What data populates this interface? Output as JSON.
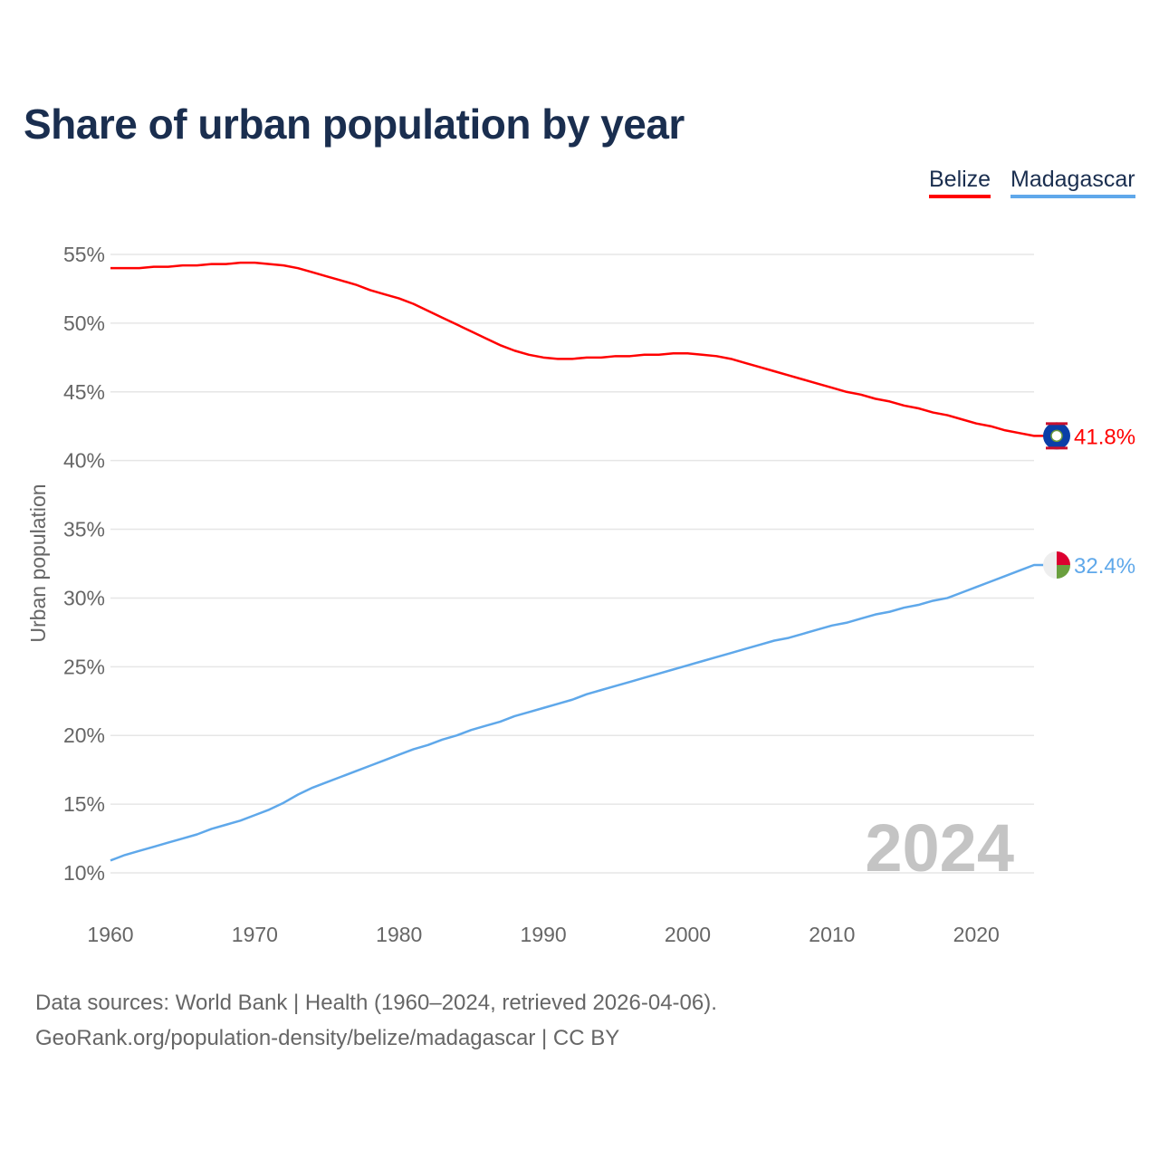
{
  "chart_data": {
    "type": "line",
    "title": "Share of urban population by year",
    "ylabel": "Urban population",
    "xlabel": "",
    "xlim": [
      1960,
      2024
    ],
    "ylim": [
      10,
      55
    ],
    "yticks": [
      10,
      15,
      20,
      25,
      30,
      35,
      40,
      45,
      50,
      55
    ],
    "ytick_labels": [
      "10%",
      "15%",
      "20%",
      "25%",
      "30%",
      "35%",
      "40%",
      "45%",
      "50%",
      "55%"
    ],
    "xticks": [
      1960,
      1970,
      1980,
      1990,
      2000,
      2010,
      2020
    ],
    "xtick_labels": [
      "1960",
      "1970",
      "1980",
      "1990",
      "2000",
      "2010",
      "2020"
    ],
    "grid": true,
    "legend_position": "top-right",
    "watermark_year": "2024",
    "x": [
      1960,
      1961,
      1962,
      1963,
      1964,
      1965,
      1966,
      1967,
      1968,
      1969,
      1970,
      1971,
      1972,
      1973,
      1974,
      1975,
      1976,
      1977,
      1978,
      1979,
      1980,
      1981,
      1982,
      1983,
      1984,
      1985,
      1986,
      1987,
      1988,
      1989,
      1990,
      1991,
      1992,
      1993,
      1994,
      1995,
      1996,
      1997,
      1998,
      1999,
      2000,
      2001,
      2002,
      2003,
      2004,
      2005,
      2006,
      2007,
      2008,
      2009,
      2010,
      2011,
      2012,
      2013,
      2014,
      2015,
      2016,
      2017,
      2018,
      2019,
      2020,
      2021,
      2022,
      2023,
      2024
    ],
    "series": [
      {
        "name": "Belize",
        "color": "#ff0000",
        "end_label": "41.8%",
        "values": [
          54.0,
          54.0,
          54.0,
          54.1,
          54.1,
          54.2,
          54.2,
          54.3,
          54.3,
          54.4,
          54.4,
          54.3,
          54.2,
          54.0,
          53.7,
          53.4,
          53.1,
          52.8,
          52.4,
          52.1,
          51.8,
          51.4,
          50.9,
          50.4,
          49.9,
          49.4,
          48.9,
          48.4,
          48.0,
          47.7,
          47.5,
          47.4,
          47.4,
          47.5,
          47.5,
          47.6,
          47.6,
          47.7,
          47.7,
          47.8,
          47.8,
          47.7,
          47.6,
          47.4,
          47.1,
          46.8,
          46.5,
          46.2,
          45.9,
          45.6,
          45.3,
          45.0,
          44.8,
          44.5,
          44.3,
          44.0,
          43.8,
          43.5,
          43.3,
          43.0,
          42.7,
          42.5,
          42.2,
          42.0,
          41.8
        ]
      },
      {
        "name": "Madagascar",
        "color": "#5fa8ea",
        "end_label": "32.4%",
        "values": [
          10.9,
          11.3,
          11.6,
          11.9,
          12.2,
          12.5,
          12.8,
          13.2,
          13.5,
          13.8,
          14.2,
          14.6,
          15.1,
          15.7,
          16.2,
          16.6,
          17.0,
          17.4,
          17.8,
          18.2,
          18.6,
          19.0,
          19.3,
          19.7,
          20.0,
          20.4,
          20.7,
          21.0,
          21.4,
          21.7,
          22.0,
          22.3,
          22.6,
          23.0,
          23.3,
          23.6,
          23.9,
          24.2,
          24.5,
          24.8,
          25.1,
          25.4,
          25.7,
          26.0,
          26.3,
          26.6,
          26.9,
          27.1,
          27.4,
          27.7,
          28.0,
          28.2,
          28.5,
          28.8,
          29.0,
          29.3,
          29.5,
          29.8,
          30.0,
          30.4,
          30.8,
          31.2,
          31.6,
          32.0,
          32.4
        ]
      }
    ]
  },
  "source": {
    "line1": "Data sources: World Bank | Health (1960–2024, retrieved 2026-04-06).",
    "line2": "GeoRank.org/population-density/belize/madagascar | CC BY"
  },
  "icons": {
    "belize": "belize-flag-icon",
    "madagascar": "madagascar-flag-icon"
  }
}
